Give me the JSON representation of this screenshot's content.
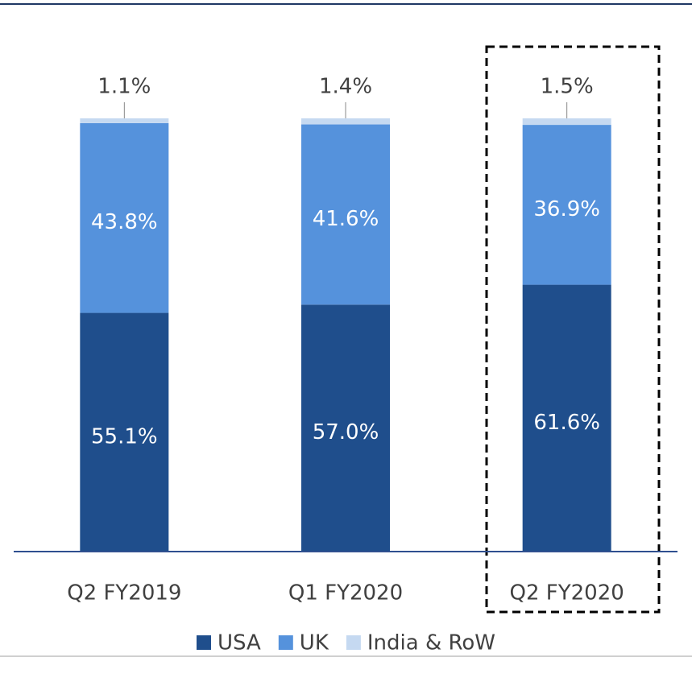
{
  "chart_data": {
    "type": "stacked_bar",
    "categories": [
      "Q2 FY2019",
      "Q1 FY2020",
      "Q2 FY2020"
    ],
    "series": [
      {
        "name": "USA",
        "color": "#1f4e8c",
        "values": [
          55.1,
          57.0,
          61.6
        ],
        "value_labels": [
          "55.1%",
          "57.0%",
          "61.6%"
        ]
      },
      {
        "name": "UK",
        "color": "#5592dc",
        "values": [
          43.8,
          41.6,
          36.9
        ],
        "value_labels": [
          "43.8%",
          "41.6%",
          "36.9%"
        ]
      },
      {
        "name": "India & RoW",
        "color": "#c5d9f1",
        "values": [
          1.1,
          1.4,
          1.5
        ],
        "value_labels": [
          "1.1%",
          "1.4%",
          "1.5%"
        ]
      }
    ],
    "ylim": [
      0,
      100
    ],
    "legend": "bottom"
  }
}
